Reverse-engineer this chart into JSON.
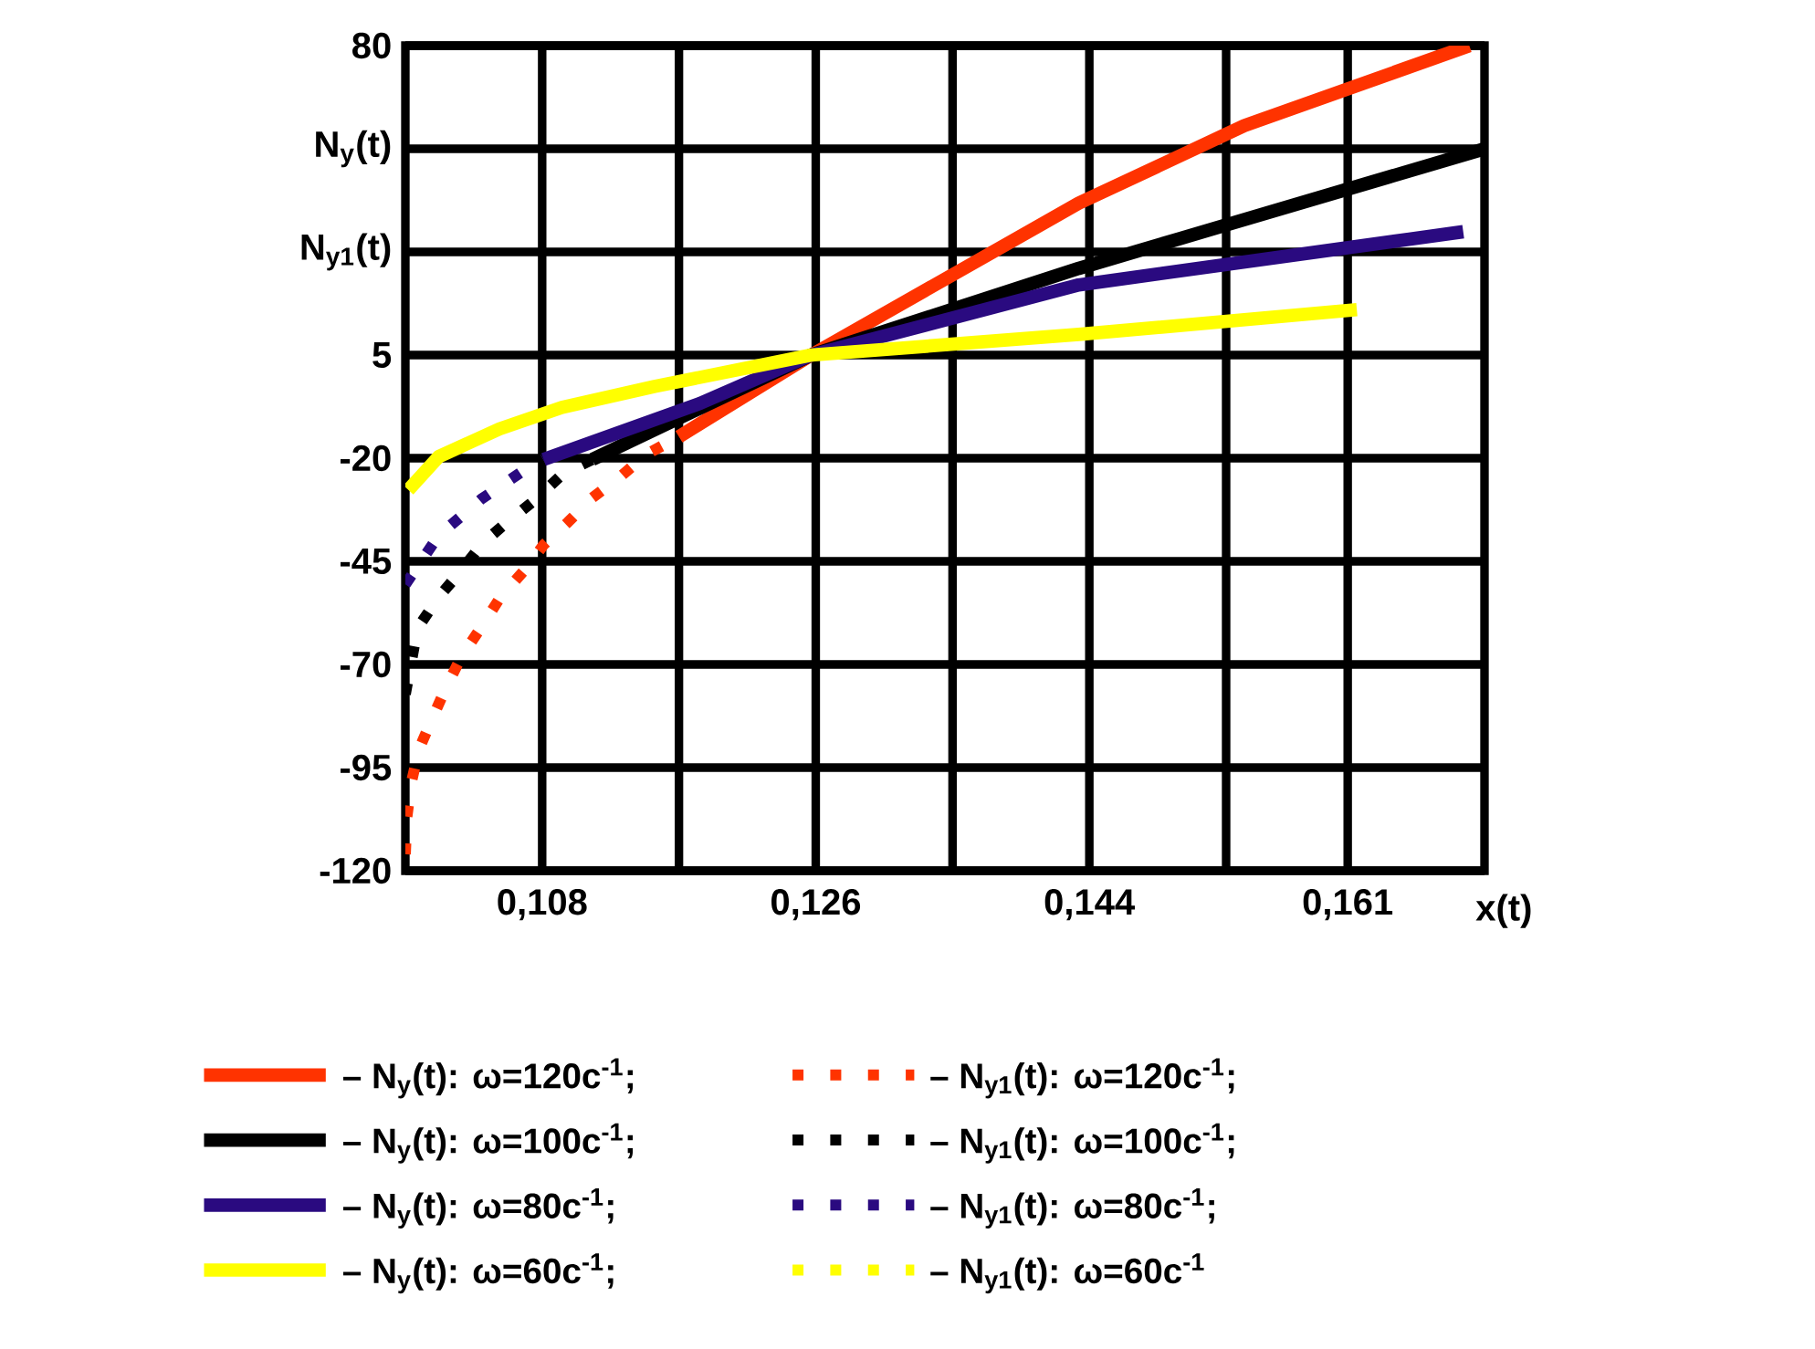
{
  "chart_data": {
    "type": "line",
    "xlabel": "x(t)",
    "xlim": [
      0.099,
      0.17
    ],
    "ylim": [
      -120,
      80
    ],
    "xticks": [
      {
        "value": 0.108,
        "label": "0,108"
      },
      {
        "value": 0.117,
        "label": null
      },
      {
        "value": 0.126,
        "label": "0,126"
      },
      {
        "value": 0.135,
        "label": null
      },
      {
        "value": 0.144,
        "label": "0,144"
      },
      {
        "value": 0.153,
        "label": null
      },
      {
        "value": 0.161,
        "label": "0,161"
      }
    ],
    "yticks": [
      -120,
      -95,
      -70,
      -45,
      -20,
      5,
      {
        "value": 30,
        "label": "N$_{y1}$(t)"
      },
      {
        "value": 55,
        "label": "N$_{y}$(t)"
      },
      80
    ],
    "grid": true,
    "legend": "bottom",
    "series": [
      {
        "name": "– N$_{y}$(t): ω=120c$^{-1}$;",
        "color": "#ff3300",
        "line_style": "solid",
        "x": [
          0.117,
          0.1257,
          0.1433,
          0.1542,
          0.169
        ],
        "values": [
          -14.8,
          5,
          41.8,
          60.6,
          80
        ]
      },
      {
        "name": "– N$_{y1}$(t): ω=120c$^{-1}$;",
        "color": "#ff3300",
        "line_style": "dotted",
        "x": [
          0.099,
          0.0991,
          0.0994,
          0.0999,
          0.1008,
          0.1017,
          0.1027,
          0.104,
          0.1052,
          0.1068,
          0.1081,
          0.1097,
          0.1113,
          0.1132,
          0.1148,
          0.117
        ],
        "values": [
          -116,
          -107,
          -98.5,
          -90.5,
          -82.8,
          -75.4,
          -68,
          -60.9,
          -54,
          -47.3,
          -41,
          -35.5,
          -29.6,
          -24.3,
          -19.2,
          -14.8
        ]
      },
      {
        "name": "– N$_{y}$(t): ω=100c$^{-1}$;",
        "color": "#000000",
        "line_style": "solid",
        "x": [
          0.1113,
          0.1257,
          0.1433,
          0.17
        ],
        "values": [
          -20.3,
          5,
          26,
          55
        ]
      },
      {
        "name": "– N$_{y1}$(t): ω=100c$^{-1}$;",
        "color": "#000000",
        "line_style": "dotted",
        "x": [
          0.099,
          0.0998,
          0.1012,
          0.1026,
          0.1041,
          0.1056,
          0.1075,
          0.1093,
          0.1113
        ],
        "values": [
          -77.2,
          -61.2,
          -53.6,
          -47.6,
          -40.5,
          -35.8,
          -30.2,
          -24,
          -20.3
        ]
      },
      {
        "name": "– N$_{y}$(t): ω=80c$^{-1}$;",
        "color": "#2a0a80",
        "line_style": "solid",
        "x": [
          0.1081,
          0.1184,
          0.1257,
          0.1433,
          0.1686
        ],
        "values": [
          -20.3,
          -6.7,
          5,
          22,
          34.9
        ]
      },
      {
        "name": "– N$_{y1}$(t): ω=80c$^{-1}$;",
        "color": "#2a0a80",
        "line_style": "dotted",
        "x": [
          0.099,
          0.1012,
          0.104,
          0.1067,
          0.1081
        ],
        "values": [
          -50.6,
          -38.7,
          -29.9,
          -23.2,
          -20.3
        ]
      },
      {
        "name": "– N$_{y}$(t): ω=60c$^{-1}$;",
        "color": "#ffff00",
        "line_style": "solid",
        "x": [
          0.0992,
          0.1012,
          0.1052,
          0.1093,
          0.1154,
          0.1257,
          0.1433,
          0.1616
        ],
        "values": [
          -27.7,
          -19.6,
          -12.9,
          -7.7,
          -2.6,
          5,
          10,
          16
        ]
      },
      {
        "name": "– N$_{y1}$(t): ω=60c$^{-1}$",
        "color": "#ffff00",
        "line_style": "dotted"
      }
    ]
  }
}
